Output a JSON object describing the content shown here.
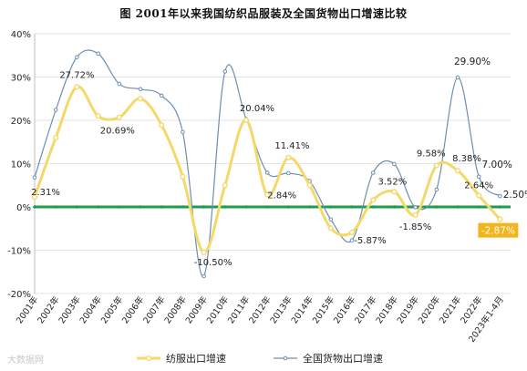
{
  "title": "图    2001年以来我国纺织品服装及全国货物出口增速比较",
  "watermark": "大数据网",
  "chart_data": {
    "type": "line",
    "categories": [
      "2001年",
      "2002年",
      "2003年",
      "2004年",
      "2005年",
      "2006年",
      "2007年",
      "2008年",
      "2009年",
      "2010年",
      "2011年",
      "2012年",
      "2013年",
      "2014年",
      "2015年",
      "2016年",
      "2017年",
      "2018年",
      "2019年",
      "2020年",
      "2021年",
      "2022年",
      "2023年1-4月"
    ],
    "y_ticks": [
      "40%",
      "30%",
      "20%",
      "10%",
      "0%",
      "-10%",
      "-20%"
    ],
    "ylim": [
      -20,
      40
    ],
    "series": [
      {
        "name": "纺服出口增速",
        "color": "#f5d86a",
        "values": [
          2.31,
          16.0,
          27.72,
          21.0,
          20.69,
          25.0,
          18.9,
          7.0,
          -10.5,
          5.0,
          20.04,
          2.84,
          11.41,
          5.0,
          -4.9,
          -5.87,
          1.6,
          3.52,
          -1.85,
          9.58,
          8.38,
          2.64,
          -2.87
        ]
      },
      {
        "name": "全国货物出口增速",
        "color": "#6d8fb0",
        "values": [
          6.8,
          22.4,
          34.6,
          35.4,
          28.4,
          27.2,
          25.7,
          17.3,
          -16.0,
          31.3,
          20.3,
          7.9,
          7.8,
          6.0,
          -2.9,
          -7.7,
          7.9,
          9.9,
          -0.1,
          4.0,
          29.9,
          7.0,
          2.5
        ]
      }
    ],
    "baseline_color": "#1f9e4a",
    "yellow_labels": [
      {
        "index": 0,
        "text": "2.31%"
      },
      {
        "index": 2,
        "text": "27.72%"
      },
      {
        "index": 4,
        "text": "20.69%"
      },
      {
        "index": 8,
        "text": "-10.50%"
      },
      {
        "index": 10,
        "text": "20.04%"
      },
      {
        "index": 11,
        "text": "2.84%"
      },
      {
        "index": 12,
        "text": "11.41%"
      },
      {
        "index": 15,
        "text": "-5.87%"
      },
      {
        "index": 17,
        "text": "3.52%"
      },
      {
        "index": 18,
        "text": "-1.85%"
      },
      {
        "index": 19,
        "text": "9.58%"
      },
      {
        "index": 20,
        "text": "8.38%"
      },
      {
        "index": 21,
        "text": "2.64%"
      }
    ],
    "highlight_label": {
      "index": 22,
      "text": "-2.87%",
      "bg": "#f2b51c"
    },
    "blue_labels": [
      {
        "index": 20,
        "text": "29.90%"
      },
      {
        "index": 21,
        "text": "7.00%"
      },
      {
        "index": 22,
        "text": "2.50%"
      }
    ],
    "legend_position": "bottom"
  }
}
